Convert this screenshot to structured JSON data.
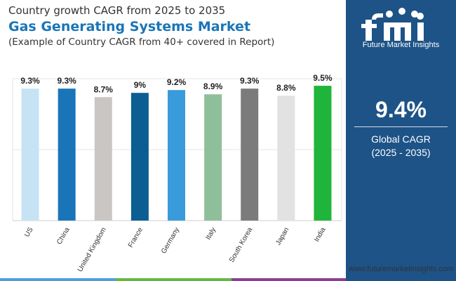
{
  "header": {
    "top_line": "Country growth CAGR from 2025 to 2035",
    "title": "Gas Generating Systems Market",
    "note": "(Example of Country CAGR from 40+ covered in Report)"
  },
  "panel": {
    "logo_text": "Future Market Insights",
    "value": "9.4%",
    "label": "Global CAGR",
    "range": "(2025 - 2035)"
  },
  "website": "www.futuremarketinsights.com",
  "colors": {
    "panel_bg": "#1d5387",
    "title": "#1a75b8",
    "strip": [
      "#4f9ed8",
      "#64b840",
      "#8d3e94"
    ]
  },
  "chart_data": {
    "type": "bar",
    "categories": [
      "US",
      "China",
      "United Kingdom",
      "France",
      "Germany",
      "Italy",
      "South Korea",
      "Japan",
      "India"
    ],
    "values": [
      9.3,
      9.3,
      8.7,
      9,
      9.2,
      8.9,
      9.3,
      8.8,
      9.5
    ],
    "labels": [
      "9.3%",
      "9.3%",
      "8.7%",
      "9%",
      "9.2%",
      "8.9%",
      "9.3%",
      "8.8%",
      "9.5%"
    ],
    "colors": [
      "#c6e3f4",
      "#1a75b8",
      "#c9c6c4",
      "#0a5e92",
      "#3a9bdb",
      "#8fbf9a",
      "#7b7b7b",
      "#e2e2e2",
      "#1fb53a"
    ],
    "ylim": [
      0,
      10
    ],
    "grid": true
  }
}
